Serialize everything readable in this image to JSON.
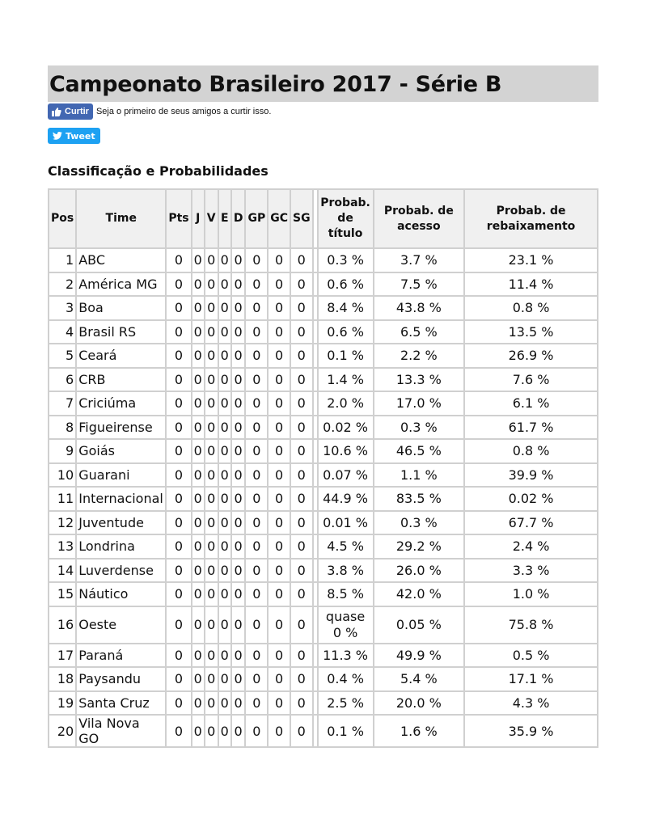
{
  "title": "Campeonato Brasileiro 2017 - Série B",
  "social": {
    "like_label": "Curtir",
    "like_text": "Seja o primeiro de seus amigos a curtir isso.",
    "tweet_label": "Tweet"
  },
  "section_title": "Classificação e Probabilidades",
  "headers": [
    "Pos",
    "Time",
    "Pts",
    "J",
    "V",
    "E",
    "D",
    "GP",
    "GC",
    "SG",
    "Probab. de título",
    "Probab. de acesso",
    "Probab. de rebaixamento"
  ],
  "rows": [
    [
      "1",
      "ABC",
      "0",
      "0",
      "0",
      "0",
      "0",
      "0",
      "0",
      "0",
      "0.3 %",
      "3.7 %",
      "23.1 %"
    ],
    [
      "2",
      "América MG",
      "0",
      "0",
      "0",
      "0",
      "0",
      "0",
      "0",
      "0",
      "0.6 %",
      "7.5 %",
      "11.4 %"
    ],
    [
      "3",
      "Boa",
      "0",
      "0",
      "0",
      "0",
      "0",
      "0",
      "0",
      "0",
      "8.4 %",
      "43.8 %",
      "0.8 %"
    ],
    [
      "4",
      "Brasil RS",
      "0",
      "0",
      "0",
      "0",
      "0",
      "0",
      "0",
      "0",
      "0.6 %",
      "6.5 %",
      "13.5 %"
    ],
    [
      "5",
      "Ceará",
      "0",
      "0",
      "0",
      "0",
      "0",
      "0",
      "0",
      "0",
      "0.1 %",
      "2.2 %",
      "26.9 %"
    ],
    [
      "6",
      "CRB",
      "0",
      "0",
      "0",
      "0",
      "0",
      "0",
      "0",
      "0",
      "1.4 %",
      "13.3 %",
      "7.6 %"
    ],
    [
      "7",
      "Criciúma",
      "0",
      "0",
      "0",
      "0",
      "0",
      "0",
      "0",
      "0",
      "2.0 %",
      "17.0 %",
      "6.1 %"
    ],
    [
      "8",
      "Figueirense",
      "0",
      "0",
      "0",
      "0",
      "0",
      "0",
      "0",
      "0",
      "0.02 %",
      "0.3 %",
      "61.7 %"
    ],
    [
      "9",
      "Goiás",
      "0",
      "0",
      "0",
      "0",
      "0",
      "0",
      "0",
      "0",
      "10.6 %",
      "46.5 %",
      "0.8 %"
    ],
    [
      "10",
      "Guarani",
      "0",
      "0",
      "0",
      "0",
      "0",
      "0",
      "0",
      "0",
      "0.07 %",
      "1.1 %",
      "39.9 %"
    ],
    [
      "11",
      "Internacional",
      "0",
      "0",
      "0",
      "0",
      "0",
      "0",
      "0",
      "0",
      "44.9 %",
      "83.5 %",
      "0.02 %"
    ],
    [
      "12",
      "Juventude",
      "0",
      "0",
      "0",
      "0",
      "0",
      "0",
      "0",
      "0",
      "0.01 %",
      "0.3 %",
      "67.7 %"
    ],
    [
      "13",
      "Londrina",
      "0",
      "0",
      "0",
      "0",
      "0",
      "0",
      "0",
      "0",
      "4.5 %",
      "29.2 %",
      "2.4 %"
    ],
    [
      "14",
      "Luverdense",
      "0",
      "0",
      "0",
      "0",
      "0",
      "0",
      "0",
      "0",
      "3.8 %",
      "26.0 %",
      "3.3 %"
    ],
    [
      "15",
      "Náutico",
      "0",
      "0",
      "0",
      "0",
      "0",
      "0",
      "0",
      "0",
      "8.5 %",
      "42.0 %",
      "1.0 %"
    ],
    [
      "16",
      "Oeste",
      "0",
      "0",
      "0",
      "0",
      "0",
      "0",
      "0",
      "0",
      "quase 0 %",
      "0.05 %",
      "75.8 %"
    ],
    [
      "17",
      "Paraná",
      "0",
      "0",
      "0",
      "0",
      "0",
      "0",
      "0",
      "0",
      "11.3 %",
      "49.9 %",
      "0.5 %"
    ],
    [
      "18",
      "Paysandu",
      "0",
      "0",
      "0",
      "0",
      "0",
      "0",
      "0",
      "0",
      "0.4 %",
      "5.4 %",
      "17.1 %"
    ],
    [
      "19",
      "Santa Cruz",
      "0",
      "0",
      "0",
      "0",
      "0",
      "0",
      "0",
      "0",
      "2.5 %",
      "20.0 %",
      "4.3 %"
    ],
    [
      "20",
      "Vila Nova GO",
      "0",
      "0",
      "0",
      "0",
      "0",
      "0",
      "0",
      "0",
      "0.1 %",
      "1.6 %",
      "35.9 %"
    ]
  ]
}
